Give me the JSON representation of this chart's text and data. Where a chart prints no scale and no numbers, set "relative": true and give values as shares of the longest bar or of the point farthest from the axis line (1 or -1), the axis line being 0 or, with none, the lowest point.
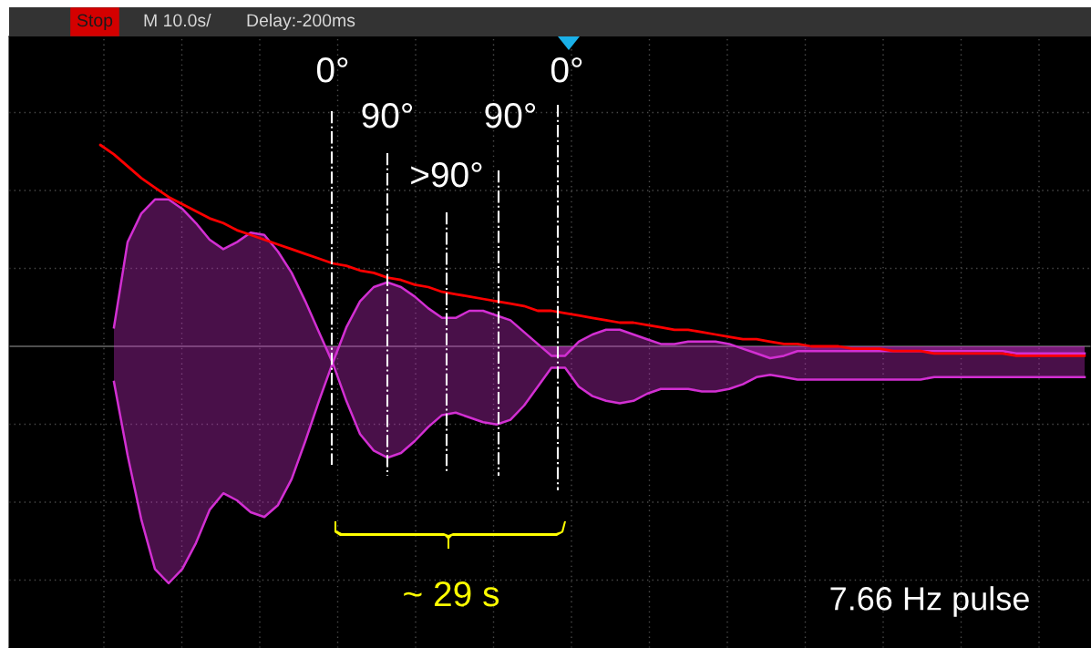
{
  "chart_data": {
    "type": "area",
    "relative": true,
    "grid": true,
    "categories": [
      null,
      null,
      null,
      null,
      null,
      null,
      null,
      null,
      null,
      null,
      null,
      null,
      null,
      null,
      null,
      null,
      null,
      null,
      null,
      null,
      null,
      null,
      null,
      null,
      null,
      null,
      null,
      null,
      null,
      null,
      null,
      null,
      null,
      null,
      null,
      null,
      null,
      null,
      null,
      null,
      null,
      null,
      null,
      null,
      null,
      null,
      null,
      null,
      null,
      null,
      null,
      null,
      null,
      null,
      null,
      null,
      null,
      null,
      null,
      null,
      null,
      null,
      null,
      null,
      null,
      null,
      null,
      null,
      null,
      null,
      null,
      null,
      null
    ],
    "series": [
      {
        "color": "#d22fd2",
        "values": [
          null,
          0.08,
          0.44,
          0.56,
          0.62,
          0.62,
          0.58,
          0.52,
          0.45,
          0.41,
          0.44,
          0.48,
          0.47,
          0.4,
          0.31,
          0.19,
          0.06,
          -0.07,
          0.08,
          0.19,
          0.25,
          0.27,
          0.25,
          0.21,
          0.16,
          0.12,
          0.12,
          0.15,
          0.15,
          0.13,
          0.11,
          0.06,
          0.01,
          -0.04,
          -0.04,
          0.02,
          0.05,
          0.07,
          0.07,
          0.05,
          0.03,
          0.01,
          0.01,
          0.02,
          0.02,
          0.02,
          0.01,
          -0.01,
          -0.03,
          -0.05,
          -0.04,
          -0.02,
          -0.02,
          -0.02,
          -0.02,
          -0.02,
          -0.02,
          -0.02,
          -0.02,
          -0.02,
          -0.02,
          -0.02,
          -0.02,
          -0.02,
          -0.02,
          -0.02,
          -0.02,
          -0.03,
          -0.03,
          -0.03,
          -0.03,
          -0.03,
          -0.03
        ]
      },
      {
        "color": "#d22fd2",
        "values": [
          null,
          -0.15,
          -0.46,
          -0.73,
          -0.94,
          -1,
          -0.94,
          -0.83,
          -0.69,
          -0.62,
          -0.65,
          -0.7,
          -0.72,
          -0.67,
          -0.56,
          -0.4,
          -0.23,
          -0.07,
          -0.23,
          -0.37,
          -0.44,
          -0.47,
          -0.45,
          -0.4,
          -0.34,
          -0.29,
          -0.28,
          -0.3,
          -0.32,
          -0.33,
          -0.31,
          -0.25,
          -0.17,
          -0.09,
          -0.09,
          -0.17,
          -0.21,
          -0.23,
          -0.24,
          -0.23,
          -0.2,
          -0.18,
          -0.18,
          -0.18,
          -0.19,
          -0.19,
          -0.18,
          -0.16,
          -0.13,
          -0.12,
          -0.13,
          -0.14,
          -0.14,
          -0.14,
          -0.14,
          -0.14,
          -0.14,
          -0.14,
          -0.14,
          -0.14,
          -0.14,
          -0.13,
          -0.13,
          -0.13,
          -0.13,
          -0.13,
          -0.13,
          -0.13,
          -0.13,
          -0.13,
          -0.13,
          -0.13,
          -0.13
        ]
      },
      {
        "type": "line",
        "color": "#ff0000",
        "values": [
          0.85,
          0.81,
          0.76,
          0.71,
          0.67,
          0.63,
          0.6,
          0.57,
          0.54,
          0.52,
          0.49,
          0.47,
          0.45,
          0.43,
          0.41,
          0.39,
          0.37,
          0.35,
          0.34,
          0.32,
          0.31,
          0.29,
          0.28,
          0.26,
          0.25,
          0.23,
          0.22,
          0.21,
          0.2,
          0.19,
          0.18,
          0.17,
          0.15,
          0.15,
          0.14,
          0.13,
          0.12,
          0.11,
          0.1,
          0.1,
          0.09,
          0.08,
          0.07,
          0.07,
          0.06,
          0.05,
          0.04,
          0.03,
          0.03,
          0.02,
          0.01,
          0.01,
          0.0,
          0.0,
          0.0,
          -0.01,
          -0.01,
          -0.01,
          -0.02,
          -0.02,
          -0.02,
          -0.03,
          -0.03,
          -0.03,
          -0.03,
          -0.03,
          -0.03,
          -0.04,
          -0.04,
          -0.04,
          -0.04,
          -0.04,
          -0.04
        ]
      }
    ],
    "annotations": [
      "Stop",
      "M 10.0s/",
      "Delay:-200ms",
      "0°",
      "90°",
      ">90°",
      "90°",
      "0°",
      "~ 29 s",
      "7.66 Hz pulse"
    ]
  }
}
